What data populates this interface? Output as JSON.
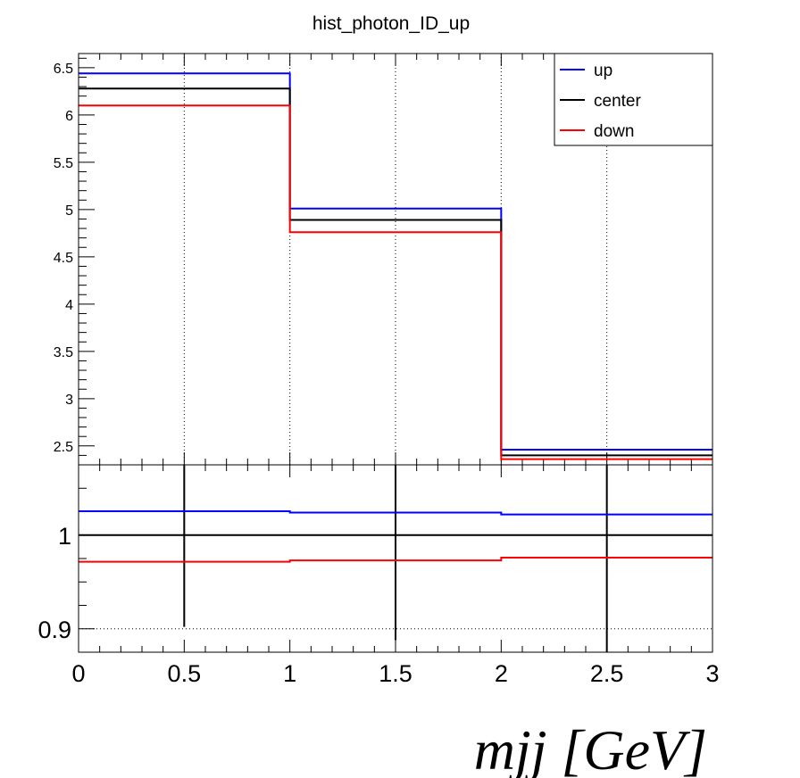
{
  "chart_data": [
    {
      "type": "line",
      "panel": "main",
      "title": "hist_photon_ID_up",
      "xlim": [
        0,
        3
      ],
      "ylim": [
        2.3,
        6.65
      ],
      "bin_edges": [
        0,
        1,
        2,
        3
      ],
      "y_tick_labels": [
        "2.5",
        "3",
        "3.5",
        "4",
        "4.5",
        "5",
        "5.5",
        "6",
        "6.5"
      ],
      "grid": "vertical dotted",
      "legend_position": "top-right",
      "series": [
        {
          "name": "up",
          "color": "#0000ff",
          "values": [
            6.44,
            5.01,
            2.46
          ]
        },
        {
          "name": "center",
          "color": "#000000",
          "values": [
            6.28,
            4.89,
            2.4
          ]
        },
        {
          "name": "down",
          "color": "#ff0000",
          "values": [
            6.1,
            4.76,
            2.36
          ]
        }
      ]
    },
    {
      "type": "line",
      "panel": "ratio",
      "xlim": [
        0,
        3
      ],
      "ylim": [
        0.875,
        1.075
      ],
      "x_tick_labels": [
        "0",
        "0.5",
        "1",
        "1.5",
        "2",
        "2.5",
        "3"
      ],
      "y_tick_labels": [
        "0.9",
        "1"
      ],
      "xlabel": "mjj [GeV]",
      "grid": "dotted at 0.9",
      "bin_edges": [
        0,
        1,
        2,
        3
      ],
      "series": [
        {
          "color": "#0000ff",
          "values": [
            1.0255,
            1.024,
            1.022
          ]
        },
        {
          "color": "#000000",
          "values": [
            1.0,
            1.0,
            1.0
          ]
        },
        {
          "color": "#ff0000",
          "values": [
            0.9715,
            0.973,
            0.976
          ]
        }
      ],
      "error_bars": [
        {
          "x": 0.5,
          "low": 0.902,
          "high": 1.075
        },
        {
          "x": 1.5,
          "low": 0.888,
          "high": 1.075
        },
        {
          "x": 2.5,
          "low": 0.875,
          "high": 1.075
        }
      ]
    }
  ]
}
